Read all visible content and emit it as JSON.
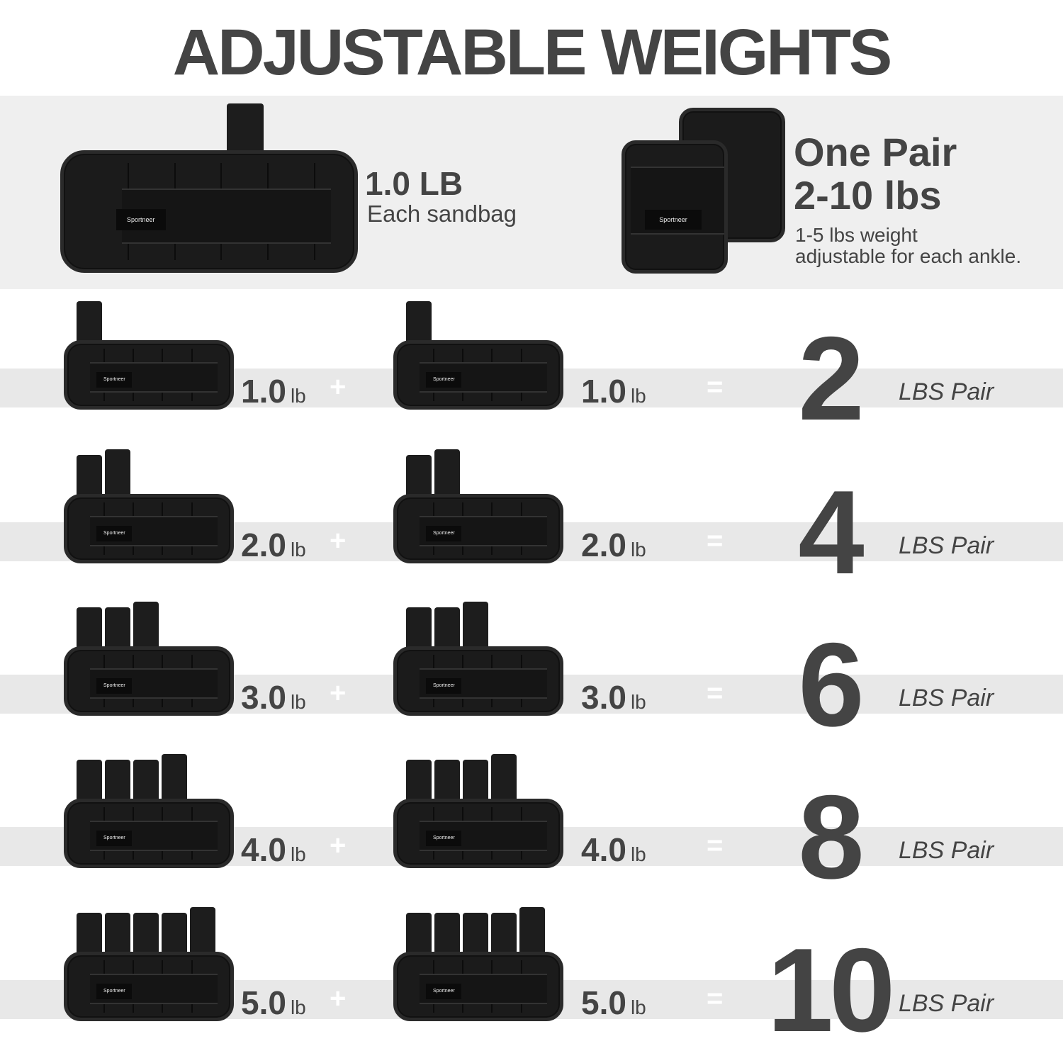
{
  "title": "ADJUSTABLE WEIGHTS",
  "hero": {
    "weight": "1.0 LB",
    "weight_caption": "Each sandbag",
    "pair_line1": "One Pair",
    "pair_line2": "2-10 lbs",
    "desc_line1": "1-5 lbs weight",
    "desc_line2": "adjustable for each ankle.",
    "brand": "Sportneer"
  },
  "rows": [
    {
      "bags": 1,
      "left": "1.0",
      "right": "1.0",
      "unit": "lb",
      "plus": "+",
      "equals": "=",
      "total": "2",
      "total_label": "LBS Pair"
    },
    {
      "bags": 2,
      "left": "2.0",
      "right": "2.0",
      "unit": "lb",
      "plus": "+",
      "equals": "=",
      "total": "4",
      "total_label": "LBS Pair"
    },
    {
      "bags": 3,
      "left": "3.0",
      "right": "3.0",
      "unit": "lb",
      "plus": "+",
      "equals": "=",
      "total": "6",
      "total_label": "LBS Pair"
    },
    {
      "bags": 4,
      "left": "4.0",
      "right": "4.0",
      "unit": "lb",
      "plus": "+",
      "equals": "=",
      "total": "8",
      "total_label": "LBS Pair"
    },
    {
      "bags": 5,
      "left": "5.0",
      "right": "5.0",
      "unit": "lb",
      "plus": "+",
      "equals": "=",
      "total": "10",
      "total_label": "LBS Pair"
    }
  ],
  "colors": {
    "text": "#444444",
    "panel": "#efefef",
    "band": "#e8e8e8",
    "product": "#1b1b1b"
  }
}
